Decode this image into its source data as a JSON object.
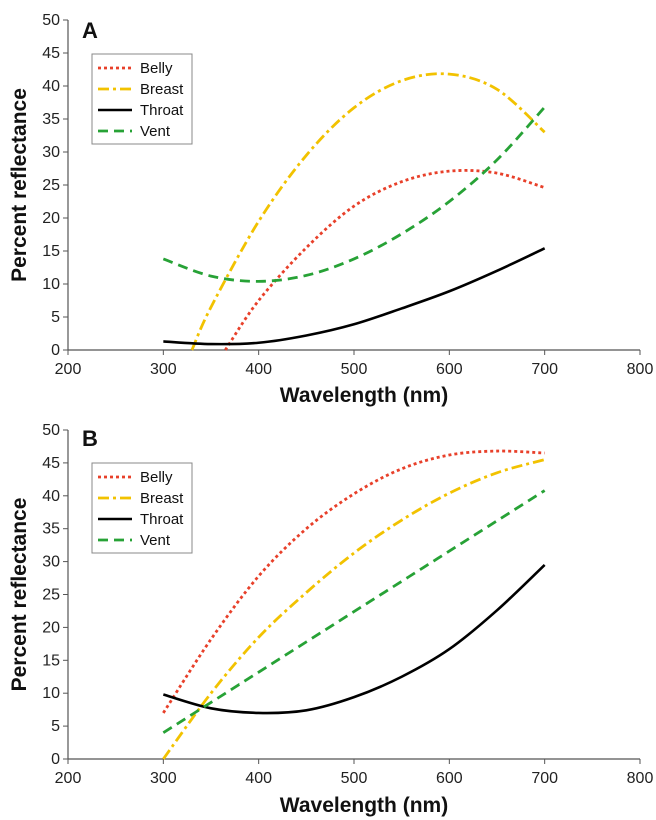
{
  "chart_data": [
    {
      "type": "line",
      "panel_label": "A",
      "xlabel": "Wavelength (nm)",
      "ylabel": "Percent reflectance",
      "xlim": [
        200,
        800
      ],
      "ylim": [
        0,
        50
      ],
      "xticks": [
        200,
        300,
        400,
        500,
        600,
        700,
        800
      ],
      "yticks": [
        0,
        5,
        10,
        15,
        20,
        25,
        30,
        35,
        40,
        45,
        50
      ],
      "grid": false,
      "legend": "top-left",
      "series": [
        {
          "name": "Belly",
          "color": "#e8402a",
          "style": "dotted",
          "x": [
            365,
            400,
            450,
            500,
            550,
            600,
            650,
            700
          ],
          "y": [
            0,
            7.5,
            15.5,
            21.8,
            25.5,
            27.1,
            26.8,
            24.6
          ]
        },
        {
          "name": "Breast",
          "color": "#f2c200",
          "style": "dashdot",
          "x": [
            330,
            350,
            400,
            450,
            500,
            550,
            600,
            650,
            700
          ],
          "y": [
            0,
            6.5,
            19.5,
            29.5,
            36.7,
            40.8,
            41.8,
            39.5,
            33
          ]
        },
        {
          "name": "Throat",
          "color": "#000000",
          "style": "solid",
          "x": [
            300,
            350,
            400,
            450,
            500,
            550,
            600,
            650,
            700
          ],
          "y": [
            1.3,
            0.9,
            1.1,
            2.2,
            3.9,
            6.3,
            8.9,
            12.0,
            15.4
          ]
        },
        {
          "name": "Vent",
          "color": "#27a236",
          "style": "dashed",
          "x": [
            300,
            350,
            400,
            450,
            500,
            550,
            600,
            650,
            700
          ],
          "y": [
            13.8,
            11.2,
            10.4,
            11.3,
            13.8,
            17.6,
            22.5,
            28.8,
            36.8
          ]
        }
      ]
    },
    {
      "type": "line",
      "panel_label": "B",
      "xlabel": "Wavelength (nm)",
      "ylabel": "Percent reflectance",
      "xlim": [
        200,
        800
      ],
      "ylim": [
        0,
        50
      ],
      "xticks": [
        200,
        300,
        400,
        500,
        600,
        700,
        800
      ],
      "yticks": [
        0,
        5,
        10,
        15,
        20,
        25,
        30,
        35,
        40,
        45,
        50
      ],
      "grid": false,
      "legend": "top-left",
      "series": [
        {
          "name": "Belly",
          "color": "#e8402a",
          "style": "dotted",
          "x": [
            300,
            350,
            400,
            450,
            500,
            550,
            600,
            650,
            700
          ],
          "y": [
            7,
            18.2,
            27.8,
            35,
            40.3,
            44.1,
            46.2,
            46.8,
            46.5
          ]
        },
        {
          "name": "Breast",
          "color": "#f2c200",
          "style": "dashdot",
          "x": [
            300,
            350,
            400,
            450,
            500,
            550,
            600,
            650,
            700
          ],
          "y": [
            0,
            10,
            18.5,
            25.3,
            31.3,
            36.3,
            40.4,
            43.5,
            45.5
          ]
        },
        {
          "name": "Throat",
          "color": "#000000",
          "style": "solid",
          "x": [
            300,
            350,
            400,
            450,
            500,
            550,
            600,
            650,
            700
          ],
          "y": [
            9.8,
            7.7,
            7.0,
            7.4,
            9.4,
            12.5,
            16.7,
            22.6,
            29.5
          ]
        },
        {
          "name": "Vent",
          "color": "#27a236",
          "style": "dashed",
          "x": [
            300,
            350,
            400,
            450,
            500,
            550,
            600,
            650,
            700
          ],
          "y": [
            4,
            8.6,
            13.2,
            17.8,
            22.4,
            27.0,
            31.6,
            36.2,
            40.8
          ]
        }
      ]
    }
  ]
}
